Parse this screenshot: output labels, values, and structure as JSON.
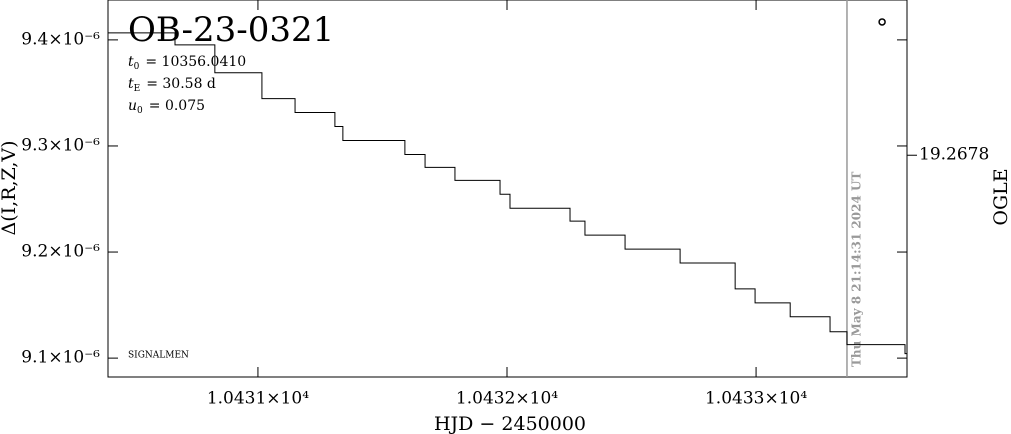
{
  "chart_data": {
    "type": "line",
    "title": "OB-23-0321",
    "x_label": "HJD − 2450000",
    "y_label": "Δ(I,R,Z,V)",
    "y2_label": "OGLE",
    "params": [
      {
        "symbol": "t",
        "sub": "0",
        "text": "= 10356.0410"
      },
      {
        "symbol": "t",
        "sub": "E",
        "text": "= 30.58 d"
      },
      {
        "symbol": "u",
        "sub": "0",
        "text": "= 0.075"
      }
    ],
    "credit": "SIGNALMEN",
    "timestamp": "Thu May 8 21:14:31 2024 UT",
    "vline": 10433.365,
    "marker": {
      "x": 10433.506,
      "y": 9.4169e-06
    },
    "color": "#000000",
    "xlim": [
      10430.398,
      10433.606
    ],
    "ylim": [
      9.0822e-06,
      9.4376e-06
    ],
    "y2lim": [
      19.2688,
      19.2671
    ],
    "xticks": [
      {
        "value": 10431,
        "label": "1.0431×10⁴"
      },
      {
        "value": 10432,
        "label": "1.0432×10⁴"
      },
      {
        "value": 10433,
        "label": "1.0433×10⁴"
      }
    ],
    "yticks": [
      {
        "value": 9.1e-06,
        "label": "9.1×10⁻⁶"
      },
      {
        "value": 9.2e-06,
        "label": "9.2×10⁻⁶"
      },
      {
        "value": 9.3e-06,
        "label": "9.3×10⁻⁶"
      },
      {
        "value": 9.4e-06,
        "label": "9.4×10⁻⁶"
      }
    ],
    "y2ticks": [
      19.2678
    ],
    "x": [
      10430.398,
      10430.667,
      10430.667,
      10430.827,
      10430.827,
      10431.016,
      10431.016,
      10431.149,
      10431.149,
      10431.309,
      10431.309,
      10431.341,
      10431.341,
      10431.59,
      10431.59,
      10431.671,
      10431.671,
      10431.791,
      10431.791,
      10431.972,
      10431.972,
      10432.012,
      10432.012,
      10432.253,
      10432.253,
      10432.313,
      10432.313,
      10432.474,
      10432.474,
      10432.695,
      10432.695,
      10432.916,
      10432.916,
      10432.996,
      10432.996,
      10433.137,
      10433.137,
      10433.297,
      10433.297,
      10433.365,
      10433.365,
      10433.598,
      10433.598,
      10433.606
    ],
    "values": [
      9.4066e-06,
      9.4066e-06,
      9.3953e-06,
      9.3953e-06,
      9.369e-06,
      9.369e-06,
      9.3446e-06,
      9.3446e-06,
      9.3315e-06,
      9.3315e-06,
      9.3183e-06,
      9.3183e-06,
      9.3052e-06,
      9.3052e-06,
      9.292e-06,
      9.292e-06,
      9.2798e-06,
      9.2798e-06,
      9.2676e-06,
      9.2676e-06,
      9.2545e-06,
      9.2545e-06,
      9.2413e-06,
      9.2413e-06,
      9.2291e-06,
      9.2291e-06,
      9.216e-06,
      9.216e-06,
      9.2028e-06,
      9.2028e-06,
      9.1897e-06,
      9.1897e-06,
      9.1653e-06,
      9.1653e-06,
      9.1521e-06,
      9.1521e-06,
      9.139e-06,
      9.139e-06,
      9.1249e-06,
      9.1249e-06,
      9.1127e-06,
      9.1127e-06,
      9.1042e-06,
      9.1042e-06
    ]
  }
}
